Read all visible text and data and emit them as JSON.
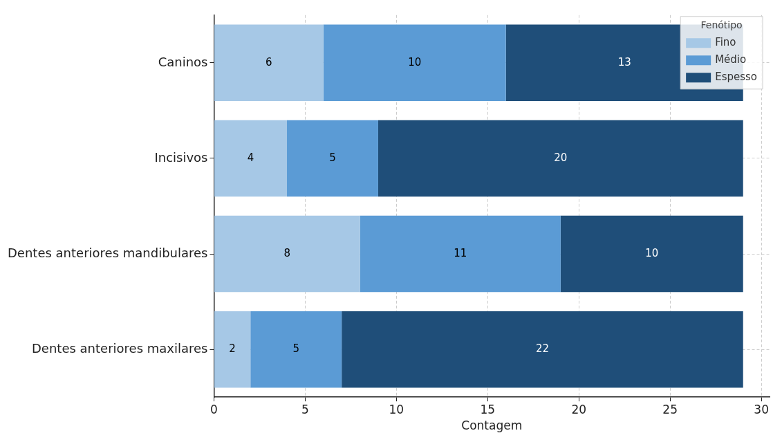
{
  "chart_data": {
    "type": "bar",
    "orientation": "horizontal",
    "stacked": true,
    "xlabel": "Contagem",
    "legend_title": "Fenótipo",
    "legend": "top right",
    "grid": true,
    "data_labels": true,
    "categories": [
      "Caninos",
      "Incisivos",
      "Dentes anteriores mandibulares",
      "Dentes anteriores maxilares"
    ],
    "series": [
      {
        "name": "Fino",
        "color": "#a6c8e6",
        "values": [
          6,
          4,
          8,
          2
        ]
      },
      {
        "name": "Médio",
        "color": "#5b9bd5",
        "values": [
          10,
          5,
          11,
          5
        ]
      },
      {
        "name": "Espesso",
        "color": "#1f4e79",
        "values": [
          13,
          20,
          10,
          22
        ]
      }
    ],
    "xlim": [
      0,
      30.45
    ],
    "xticks": [
      0,
      5,
      10,
      15,
      20,
      25,
      30
    ]
  }
}
